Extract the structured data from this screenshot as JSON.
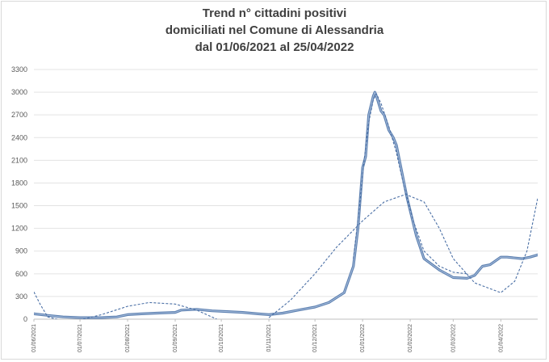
{
  "chart_data": {
    "type": "line",
    "title_lines": [
      "Trend n° cittadini positivi",
      "domiciliati nel Comune di Alessandria",
      "dal 01/06/2021 al 25/04/2022"
    ],
    "xlabel": "",
    "ylabel": "",
    "ylim": [
      0,
      3300
    ],
    "yticks": [
      "0",
      "300",
      "600",
      "900",
      "1200",
      "1500",
      "1800",
      "2100",
      "2400",
      "2700",
      "3000",
      "3300"
    ],
    "x_start": "2021-06-01",
    "x_end": "2022-04-25",
    "xticks": [
      {
        "date": "2021-06-01",
        "label": "01/06/2021"
      },
      {
        "date": "2021-07-01",
        "label": "01/07/2021"
      },
      {
        "date": "2021-08-01",
        "label": "01/08/2021"
      },
      {
        "date": "2021-09-01",
        "label": "01/09/2021"
      },
      {
        "date": "2021-10-01",
        "label": "01/10/2021"
      },
      {
        "date": "2021-11-01",
        "label": "01/11/2021"
      },
      {
        "date": "2021-12-01",
        "label": "01/12/2021"
      },
      {
        "date": "2022-01-01",
        "label": "01/01/2022"
      },
      {
        "date": "2022-02-01",
        "label": "01/02/2022"
      },
      {
        "date": "2022-03-01",
        "label": "01/03/2022"
      },
      {
        "date": "2022-04-01",
        "label": "01/04/2022"
      }
    ],
    "grid": true,
    "legend": "none",
    "series": [
      {
        "style": "solid",
        "color": "#5b7fb0",
        "points": [
          [
            "2021-06-01",
            70
          ],
          [
            "2021-06-10",
            50
          ],
          [
            "2021-06-20",
            30
          ],
          [
            "2021-07-01",
            20
          ],
          [
            "2021-07-15",
            20
          ],
          [
            "2021-07-25",
            30
          ],
          [
            "2021-08-01",
            60
          ],
          [
            "2021-08-10",
            70
          ],
          [
            "2021-08-20",
            80
          ],
          [
            "2021-09-01",
            90
          ],
          [
            "2021-09-05",
            120
          ],
          [
            "2021-09-15",
            130
          ],
          [
            "2021-09-25",
            110
          ],
          [
            "2021-10-05",
            100
          ],
          [
            "2021-10-15",
            90
          ],
          [
            "2021-10-25",
            70
          ],
          [
            "2021-11-01",
            60
          ],
          [
            "2021-11-10",
            80
          ],
          [
            "2021-11-20",
            120
          ],
          [
            "2021-12-01",
            160
          ],
          [
            "2021-12-10",
            220
          ],
          [
            "2021-12-20",
            350
          ],
          [
            "2021-12-26",
            700
          ],
          [
            "2021-12-29",
            1200
          ],
          [
            "2022-01-01",
            2000
          ],
          [
            "2022-01-03",
            2150
          ],
          [
            "2022-01-05",
            2700
          ],
          [
            "2022-01-08",
            2950
          ],
          [
            "2022-01-09",
            3000
          ],
          [
            "2022-01-10",
            2950
          ],
          [
            "2022-01-13",
            2750
          ],
          [
            "2022-01-15",
            2700
          ],
          [
            "2022-01-18",
            2500
          ],
          [
            "2022-01-21",
            2400
          ],
          [
            "2022-01-23",
            2300
          ],
          [
            "2022-01-26",
            2000
          ],
          [
            "2022-01-30",
            1600
          ],
          [
            "2022-02-05",
            1100
          ],
          [
            "2022-02-10",
            800
          ],
          [
            "2022-02-20",
            650
          ],
          [
            "2022-03-01",
            550
          ],
          [
            "2022-03-10",
            540
          ],
          [
            "2022-03-15",
            580
          ],
          [
            "2022-03-20",
            700
          ],
          [
            "2022-03-25",
            720
          ],
          [
            "2022-04-01",
            820
          ],
          [
            "2022-04-05",
            820
          ],
          [
            "2022-04-10",
            810
          ],
          [
            "2022-04-15",
            800
          ],
          [
            "2022-04-20",
            820
          ],
          [
            "2022-04-25",
            850
          ]
        ]
      },
      {
        "style": "dashed",
        "color": "#4a6fa5",
        "points": [
          [
            "2021-06-01",
            360
          ],
          [
            "2021-06-05",
            200
          ],
          [
            "2021-06-10",
            30
          ],
          [
            "2021-06-20",
            -20
          ],
          [
            "2021-07-01",
            -10
          ],
          [
            "2021-07-15",
            60
          ],
          [
            "2021-08-01",
            170
          ],
          [
            "2021-08-15",
            220
          ],
          [
            "2021-09-01",
            200
          ],
          [
            "2021-09-15",
            120
          ],
          [
            "2021-09-28",
            0
          ]
        ]
      },
      {
        "style": "dashed",
        "color": "#4a6fa5",
        "points": [
          [
            "2021-11-01",
            20
          ],
          [
            "2021-11-15",
            250
          ],
          [
            "2021-12-01",
            600
          ],
          [
            "2021-12-15",
            950
          ],
          [
            "2022-01-01",
            1300
          ],
          [
            "2022-01-15",
            1550
          ],
          [
            "2022-01-29",
            1650
          ],
          [
            "2022-02-10",
            1550
          ],
          [
            "2022-02-20",
            1200
          ],
          [
            "2022-03-01",
            800
          ],
          [
            "2022-03-15",
            480
          ],
          [
            "2022-04-01",
            350
          ],
          [
            "2022-04-10",
            500
          ],
          [
            "2022-04-18",
            900
          ],
          [
            "2022-04-25",
            1600
          ]
        ]
      },
      {
        "style": "dashed",
        "color": "#4a6fa5",
        "points": [
          [
            "2021-12-26",
            800
          ],
          [
            "2021-12-30",
            1500
          ],
          [
            "2022-01-02",
            2100
          ],
          [
            "2022-01-05",
            2600
          ],
          [
            "2022-01-08",
            2900
          ],
          [
            "2022-01-10",
            2980
          ],
          [
            "2022-01-13",
            2850
          ],
          [
            "2022-01-18",
            2550
          ],
          [
            "2022-01-23",
            2200
          ],
          [
            "2022-01-28",
            1750
          ],
          [
            "2022-02-03",
            1300
          ],
          [
            "2022-02-10",
            900
          ],
          [
            "2022-02-20",
            700
          ],
          [
            "2022-03-01",
            620
          ],
          [
            "2022-03-10",
            600
          ]
        ]
      }
    ]
  }
}
